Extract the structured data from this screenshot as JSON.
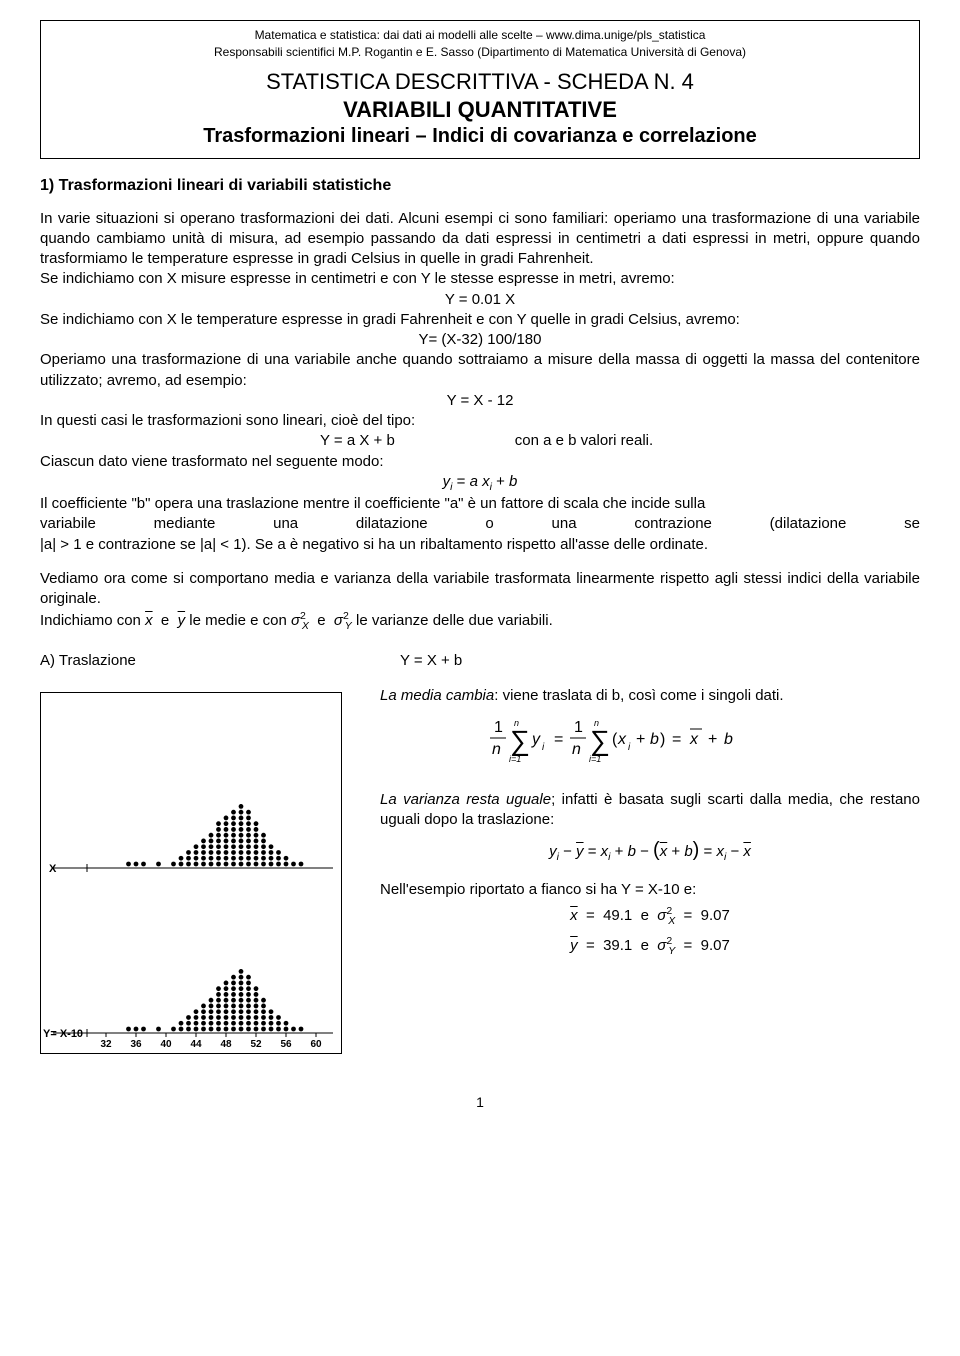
{
  "header": {
    "line1": "Matematica e statistica: dai dati ai modelli alle scelte – www.dima.unige/pls_statistica",
    "line2": "Responsabili scientifici M.P. Rogantin e E. Sasso (Dipartimento di Matematica Università di Genova)",
    "title1": "STATISTICA DESCRITTIVA - SCHEDA N. 4",
    "title2": "VARIABILI QUANTITATIVE",
    "title3": "Trasformazioni lineari – Indici di covarianza e correlazione"
  },
  "section1": {
    "title": "1) Trasformazioni lineari di variabili statistiche",
    "para1": "In varie situazioni si operano trasformazioni dei dati. Alcuni esempi ci sono familiari: operiamo una trasformazione di una variabile quando cambiamo unità di misura, ad esempio passando da dati espressi in centimetri a dati espressi in metri, oppure quando trasformiamo le temperature espresse in gradi Celsius in quelle in gradi Fahrenheit.",
    "para2": "Se indichiamo con X misure espresse in centimetri e con Y le stesse espresse in metri, avremo:",
    "eq1": "Y = 0.01 X",
    "para3": "Se indichiamo con X le temperature espresse in gradi Fahrenheit e con Y quelle in gradi Celsius, avremo:",
    "eq2": "Y= (X-32) 100/180",
    "para4": "Operiamo una trasformazione di una variabile anche quando sottraiamo a misure della massa di oggetti la massa del contenitore utilizzato; avremo, ad esempio:",
    "eq3": "Y = X - 12",
    "para5": "In questi casi le trasformazioni sono lineari, cioè del tipo:",
    "eq4a": "Y = a X + b",
    "eq4b": "con a e b valori reali.",
    "para6": "Ciascun dato viene trasformato nel seguente modo:",
    "para7a": "Il coefficiente \"b\" opera una traslazione mentre il coefficiente \"a\" è un fattore di scala che incide sulla",
    "para7b": "variabile mediante una dilatazione o una contrazione (dilatazione se",
    "para7c": "|a| > 1 e contrazione se |a| < 1).  Se a è negativo si ha un ribaltamento rispetto all'asse delle ordinate.",
    "para8": "Vediamo ora come si comportano media e varianza della variabile trasformata linearmente rispetto agli stessi indici della variabile originale.",
    "para9a": "Indichiamo con ",
    "para9b": " le medie  e con ",
    "para9c": " le varianze delle due variabili."
  },
  "sectionA": {
    "title_left": "A) Traslazione",
    "title_right": "Y = X + b",
    "r1a": "La media cambia",
    "r1b": ": viene traslata di b, così come i singoli dati.",
    "r2a": "La varianza resta uguale",
    "r2b": "; infatti è basata sugli scarti dalla media, che restano uguali dopo la traslazione:",
    "r3": "Nell'esempio riportato a fianco si ha Y = X-10 e:",
    "xbar_val": "49.1",
    "sx_val": "9.07",
    "ybar_val": "39.1",
    "sy_val": "9.07"
  },
  "plot": {
    "x_ticks": [
      "32",
      "36",
      "40",
      "44",
      "48",
      "52",
      "56",
      "60"
    ],
    "x_tick_positions": [
      32,
      36,
      40,
      44,
      48,
      52,
      56,
      60
    ],
    "x_min": 30,
    "x_max": 62,
    "dot_radius": 2.4,
    "dot_color": "#000000",
    "border_color": "#000000",
    "label_top": "X",
    "label_bottom": "Y= X-10",
    "counts": {
      "35": 1,
      "36": 1,
      "37": 1,
      "39": 1,
      "41": 1,
      "42": 2,
      "43": 3,
      "44": 4,
      "45": 5,
      "46": 6,
      "47": 8,
      "48": 9,
      "49": 10,
      "50": 11,
      "51": 10,
      "52": 8,
      "53": 6,
      "54": 4,
      "55": 3,
      "56": 2,
      "57": 1,
      "58": 1
    }
  },
  "page_number": "1"
}
